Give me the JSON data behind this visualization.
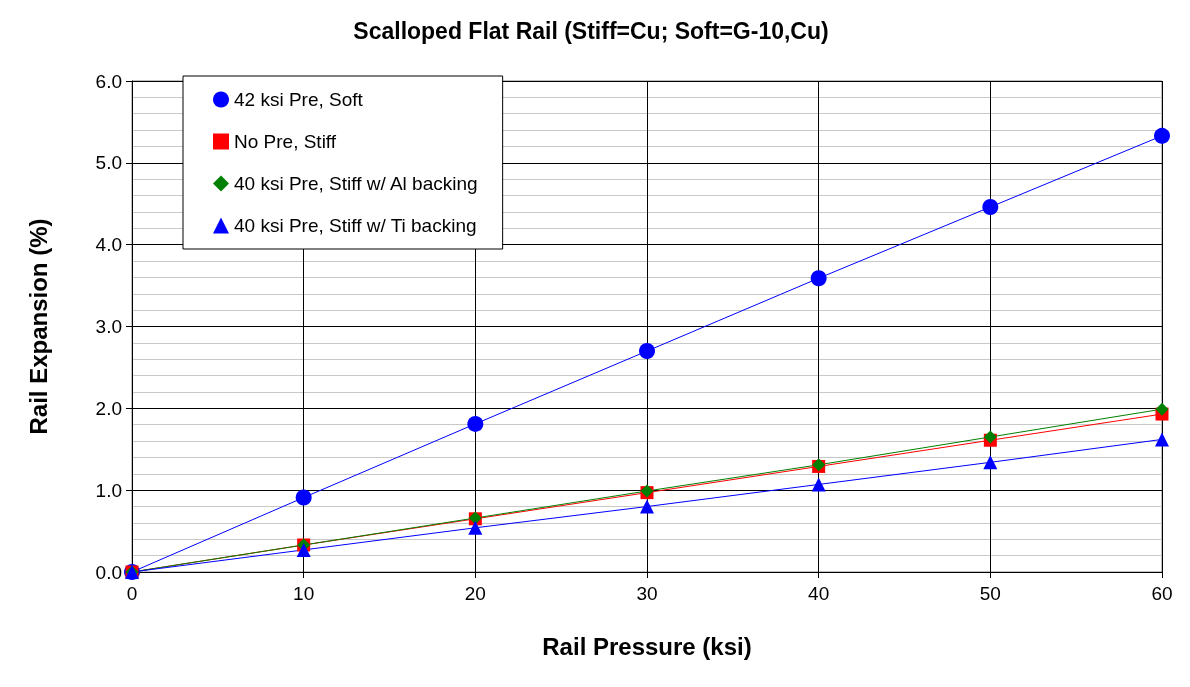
{
  "chart_data": {
    "type": "line",
    "title": "Scalloped Flat Rail (Stiff=Cu; Soft=G-10,Cu)",
    "xlabel": "Rail Pressure (ksi)",
    "ylabel": "Rail Expansion (%)",
    "x": [
      0,
      10,
      20,
      30,
      40,
      50,
      60
    ],
    "series": [
      {
        "name": "42 ksi Pre, Soft",
        "color": "#0000ff",
        "marker": "circle",
        "values": [
          0,
          0.91,
          1.81,
          2.7,
          3.59,
          4.46,
          5.33
        ]
      },
      {
        "name": "No Pre, Stiff",
        "color": "#ff0000",
        "marker": "square",
        "values": [
          0,
          0.33,
          0.65,
          0.97,
          1.29,
          1.61,
          1.93
        ]
      },
      {
        "name": "40 ksi Pre, Stiff w/ Al backing",
        "color": "#008000",
        "marker": "diamond",
        "values": [
          0,
          0.33,
          0.66,
          0.99,
          1.31,
          1.65,
          1.99
        ]
      },
      {
        "name": "40 ksi Pre, Stiff w/ Ti backing",
        "color": "#0000ff",
        "marker": "triangle",
        "values": [
          0,
          0.27,
          0.54,
          0.8,
          1.07,
          1.34,
          1.62
        ]
      }
    ],
    "xlim": [
      0,
      60
    ],
    "xticks": [
      0,
      10,
      20,
      30,
      40,
      50,
      60
    ],
    "ylim": [
      0,
      6
    ],
    "yticks": [
      {
        "value": 0,
        "label": "0.0"
      },
      {
        "value": 1,
        "label": "1.0"
      },
      {
        "value": 2,
        "label": "2.0"
      },
      {
        "value": 3,
        "label": "3.0"
      },
      {
        "value": 4,
        "label": "4.0"
      },
      {
        "value": 5,
        "label": "5.0"
      },
      {
        "value": 6,
        "label": "6.0"
      }
    ],
    "grid": true,
    "legend": "top left",
    "line_style": "solid"
  }
}
